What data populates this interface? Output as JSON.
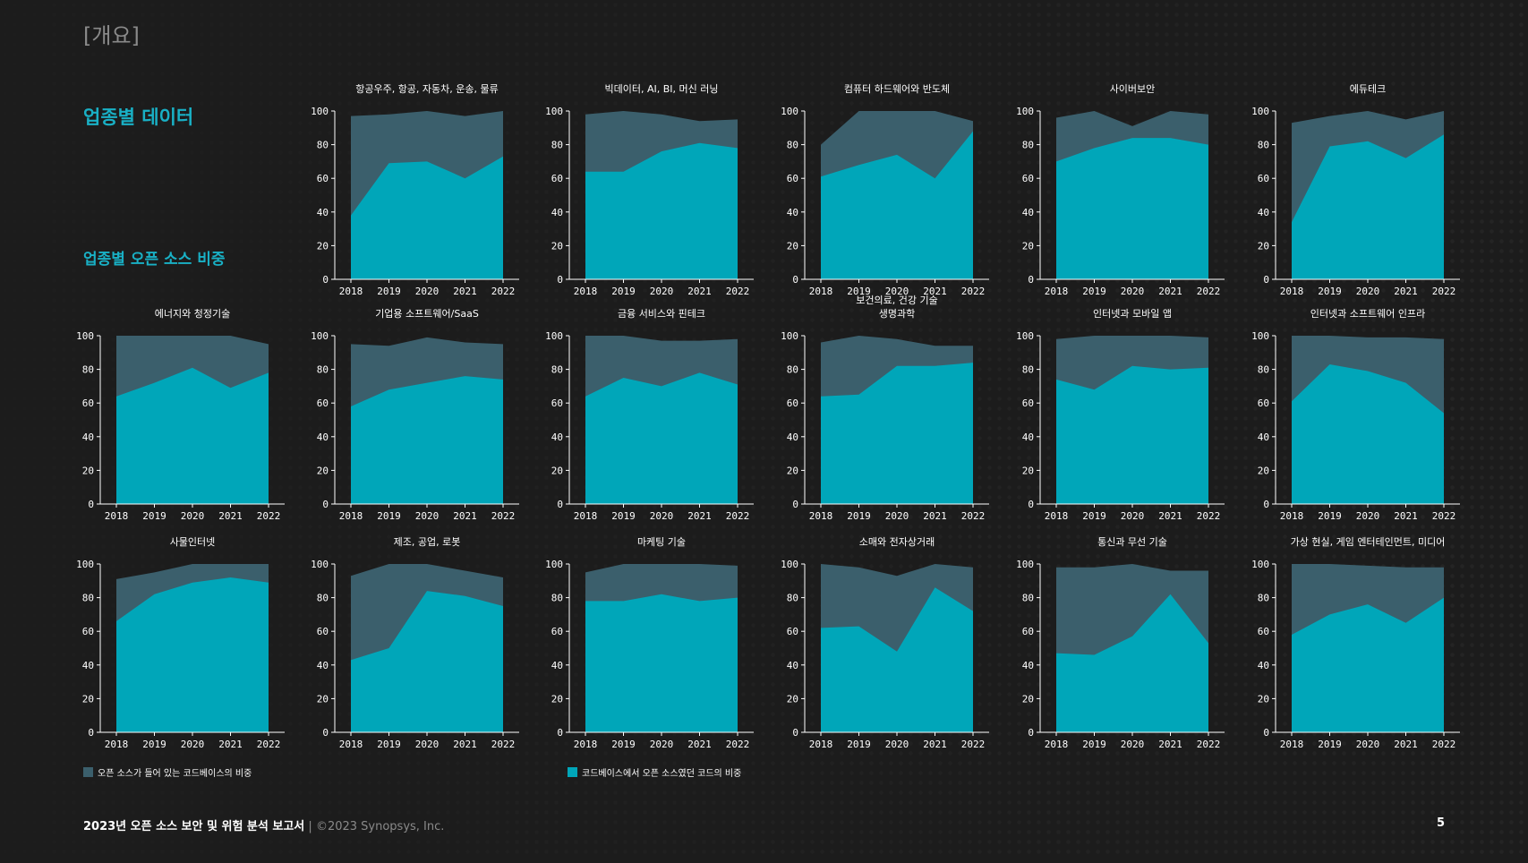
{
  "header": {
    "section": "[개요]",
    "title": "업종별 데이터",
    "subtitle": "업종별 오픈 소스 비중"
  },
  "colors": {
    "background": "#1c1c1c",
    "codebase_share": "#3b5f6c",
    "code_share": "#00a6b9",
    "accent": "#19b0c5"
  },
  "legend": {
    "codebase_label": "오픈 소스가 들어 있는 코드베이스의 비중",
    "code_label": "코드베이스에서 오픈 소스였던 코드의 비중"
  },
  "footer": {
    "report_title": "2023년 오픈 소스 보안 및 위험 분석 보고서",
    "separator": "|",
    "copyright": "©2023 Synopsys, Inc.",
    "page_number": "5"
  },
  "chart_data": [
    {
      "type": "area",
      "title": "항공우주, 항공, 자동차, 운송, 물류",
      "x": [
        "2018",
        "2019",
        "2020",
        "2021",
        "2022"
      ],
      "ylim": [
        0,
        100
      ],
      "yticks": [
        "0",
        "20",
        "40",
        "60",
        "80",
        "100"
      ],
      "series": [
        {
          "values": [
            97,
            98,
            100,
            97,
            100
          ]
        },
        {
          "values": [
            38,
            69,
            70,
            60,
            73
          ]
        }
      ]
    },
    {
      "type": "area",
      "title": "빅데이터, AI, BI, 머신 러닝",
      "x": [
        "2018",
        "2019",
        "2020",
        "2021",
        "2022"
      ],
      "ylim": [
        0,
        100
      ],
      "yticks": [
        "0",
        "20",
        "40",
        "60",
        "80",
        "100"
      ],
      "series": [
        {
          "values": [
            98,
            100,
            98,
            94,
            95
          ]
        },
        {
          "values": [
            64,
            64,
            76,
            81,
            78
          ]
        }
      ]
    },
    {
      "type": "area",
      "title": "컴퓨터 하드웨어와 반도체",
      "x": [
        "2018",
        "2019",
        "2020",
        "2021",
        "2022"
      ],
      "ylim": [
        0,
        100
      ],
      "yticks": [
        "0",
        "20",
        "40",
        "60",
        "80",
        "100"
      ],
      "series": [
        {
          "values": [
            80,
            100,
            100,
            100,
            94
          ]
        },
        {
          "values": [
            61,
            68,
            74,
            60,
            88
          ]
        }
      ]
    },
    {
      "type": "area",
      "title": "사이버보안",
      "x": [
        "2018",
        "2019",
        "2020",
        "2021",
        "2022"
      ],
      "ylim": [
        0,
        100
      ],
      "yticks": [
        "0",
        "20",
        "40",
        "60",
        "80",
        "100"
      ],
      "series": [
        {
          "values": [
            96,
            100,
            91,
            100,
            98
          ]
        },
        {
          "values": [
            70,
            78,
            84,
            84,
            80
          ]
        }
      ]
    },
    {
      "type": "area",
      "title": "에듀테크",
      "x": [
        "2018",
        "2019",
        "2020",
        "2021",
        "2022"
      ],
      "ylim": [
        0,
        100
      ],
      "yticks": [
        "0",
        "20",
        "40",
        "60",
        "80",
        "100"
      ],
      "series": [
        {
          "values": [
            93,
            97,
            100,
            95,
            100
          ]
        },
        {
          "values": [
            34,
            79,
            82,
            72,
            86
          ]
        }
      ]
    },
    {
      "type": "area",
      "title": "에너지와 청정기술",
      "x": [
        "2018",
        "2019",
        "2020",
        "2021",
        "2022"
      ],
      "ylim": [
        0,
        100
      ],
      "yticks": [
        "0",
        "20",
        "40",
        "60",
        "80",
        "100"
      ],
      "series": [
        {
          "values": [
            100,
            100,
            100,
            100,
            95
          ]
        },
        {
          "values": [
            64,
            72,
            81,
            69,
            78
          ]
        }
      ]
    },
    {
      "type": "area",
      "title": "기업용 소프트웨어/SaaS",
      "x": [
        "2018",
        "2019",
        "2020",
        "2021",
        "2022"
      ],
      "ylim": [
        0,
        100
      ],
      "yticks": [
        "0",
        "20",
        "40",
        "60",
        "80",
        "100"
      ],
      "series": [
        {
          "values": [
            95,
            94,
            99,
            96,
            95
          ]
        },
        {
          "values": [
            58,
            68,
            72,
            76,
            74
          ]
        }
      ]
    },
    {
      "type": "area",
      "title": "금융 서비스와 핀테크",
      "x": [
        "2018",
        "2019",
        "2020",
        "2021",
        "2022"
      ],
      "ylim": [
        0,
        100
      ],
      "yticks": [
        "0",
        "20",
        "40",
        "60",
        "80",
        "100"
      ],
      "series": [
        {
          "values": [
            100,
            100,
            97,
            97,
            98
          ]
        },
        {
          "values": [
            64,
            75,
            70,
            78,
            71
          ]
        }
      ]
    },
    {
      "type": "area",
      "title": "보건의료, 건강 기술\n생명과학",
      "x": [
        "2018",
        "2019",
        "2020",
        "2021",
        "2022"
      ],
      "ylim": [
        0,
        100
      ],
      "yticks": [
        "0",
        "20",
        "40",
        "60",
        "80",
        "100"
      ],
      "series": [
        {
          "values": [
            96,
            100,
            98,
            94,
            94
          ]
        },
        {
          "values": [
            64,
            65,
            82,
            82,
            84
          ]
        }
      ]
    },
    {
      "type": "area",
      "title": "인터넷과 모바일 앱",
      "x": [
        "2018",
        "2019",
        "2020",
        "2021",
        "2022"
      ],
      "ylim": [
        0,
        100
      ],
      "yticks": [
        "0",
        "20",
        "40",
        "60",
        "80",
        "100"
      ],
      "series": [
        {
          "values": [
            98,
            100,
            100,
            100,
            99
          ]
        },
        {
          "values": [
            74,
            68,
            82,
            80,
            81
          ]
        }
      ]
    },
    {
      "type": "area",
      "title": "인터넷과 소프트웨어 인프라",
      "x": [
        "2018",
        "2019",
        "2020",
        "2021",
        "2022"
      ],
      "ylim": [
        0,
        100
      ],
      "yticks": [
        "0",
        "20",
        "40",
        "60",
        "80",
        "100"
      ],
      "series": [
        {
          "values": [
            100,
            100,
            99,
            99,
            98
          ]
        },
        {
          "values": [
            61,
            83,
            79,
            72,
            54
          ]
        }
      ]
    },
    {
      "type": "area",
      "title": "사물인터넷",
      "x": [
        "2018",
        "2019",
        "2020",
        "2021",
        "2022"
      ],
      "ylim": [
        0,
        100
      ],
      "yticks": [
        "0",
        "20",
        "40",
        "60",
        "80",
        "100"
      ],
      "series": [
        {
          "values": [
            91,
            95,
            100,
            100,
            100
          ]
        },
        {
          "values": [
            66,
            82,
            89,
            92,
            89
          ]
        }
      ]
    },
    {
      "type": "area",
      "title": "제조, 공업, 로봇",
      "x": [
        "2018",
        "2019",
        "2020",
        "2021",
        "2022"
      ],
      "ylim": [
        0,
        100
      ],
      "yticks": [
        "0",
        "20",
        "40",
        "60",
        "80",
        "100"
      ],
      "series": [
        {
          "values": [
            93,
            100,
            100,
            96,
            92
          ]
        },
        {
          "values": [
            43,
            50,
            84,
            81,
            75
          ]
        }
      ]
    },
    {
      "type": "area",
      "title": "마케팅 기술",
      "x": [
        "2018",
        "2019",
        "2020",
        "2021",
        "2022"
      ],
      "ylim": [
        0,
        100
      ],
      "yticks": [
        "0",
        "20",
        "40",
        "60",
        "80",
        "100"
      ],
      "series": [
        {
          "values": [
            95,
            100,
            100,
            100,
            99
          ]
        },
        {
          "values": [
            78,
            78,
            82,
            78,
            80
          ]
        }
      ]
    },
    {
      "type": "area",
      "title": "소매와 전자상거래",
      "x": [
        "2018",
        "2019",
        "2020",
        "2021",
        "2022"
      ],
      "ylim": [
        0,
        100
      ],
      "yticks": [
        "0",
        "20",
        "40",
        "60",
        "80",
        "100"
      ],
      "series": [
        {
          "values": [
            100,
            98,
            93,
            100,
            98
          ]
        },
        {
          "values": [
            62,
            63,
            48,
            86,
            72
          ]
        }
      ]
    },
    {
      "type": "area",
      "title": "통신과 무선 기술",
      "x": [
        "2018",
        "2019",
        "2020",
        "2021",
        "2022"
      ],
      "ylim": [
        0,
        100
      ],
      "yticks": [
        "0",
        "20",
        "40",
        "60",
        "80",
        "100"
      ],
      "series": [
        {
          "values": [
            98,
            98,
            100,
            96,
            96
          ]
        },
        {
          "values": [
            47,
            46,
            57,
            82,
            53
          ]
        }
      ]
    },
    {
      "type": "area",
      "title": "가상 현실, 게임 엔터테인먼트, 미디어",
      "x": [
        "2018",
        "2019",
        "2020",
        "2021",
        "2022"
      ],
      "ylim": [
        0,
        100
      ],
      "yticks": [
        "0",
        "20",
        "40",
        "60",
        "80",
        "100"
      ],
      "series": [
        {
          "values": [
            100,
            100,
            99,
            98,
            98
          ]
        },
        {
          "values": [
            58,
            70,
            76,
            65,
            80
          ]
        }
      ]
    }
  ]
}
